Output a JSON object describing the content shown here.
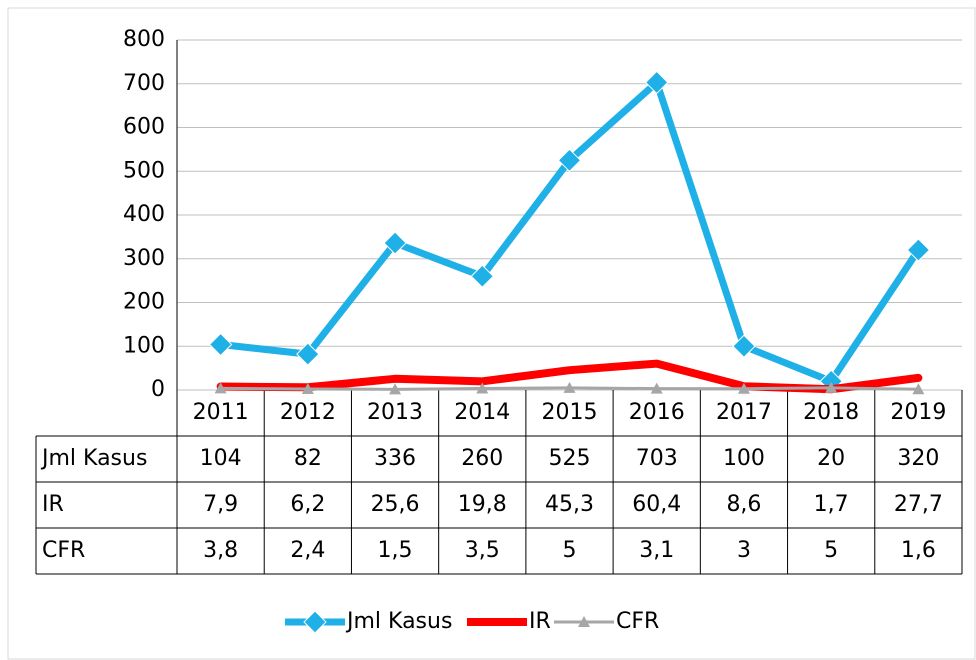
{
  "chart_data": {
    "type": "line",
    "categories": [
      "2011",
      "2012",
      "2013",
      "2014",
      "2015",
      "2016",
      "2017",
      "2018",
      "2019"
    ],
    "series": [
      {
        "name": "Jml Kasus",
        "color": "#1fb0e8",
        "marker": "diamond",
        "values": [
          104,
          82,
          336,
          260,
          525,
          703,
          100,
          20,
          320
        ]
      },
      {
        "name": "IR",
        "color": "#ff0000",
        "marker": "none",
        "values": [
          7.9,
          6.2,
          25.6,
          19.8,
          45.3,
          60.4,
          8.6,
          1.7,
          27.7
        ],
        "value_labels": [
          "7,9",
          "6,2",
          "25,6",
          "19,8",
          "45,3",
          "60,4",
          "8,6",
          "1,7",
          "27,7"
        ]
      },
      {
        "name": "CFR",
        "color": "#a6a6a6",
        "marker": "triangle",
        "values": [
          3.8,
          2.4,
          1.5,
          3.5,
          5,
          3.1,
          3,
          5,
          1.6
        ],
        "value_labels": [
          "3,8",
          "2,4",
          "1,5",
          "3,5",
          "5",
          "3,1",
          "3",
          "5",
          "1,6"
        ]
      }
    ],
    "ylim": [
      0,
      800
    ],
    "yticks": [
      0,
      100,
      200,
      300,
      400,
      500,
      600,
      700,
      800
    ],
    "grid": true,
    "legend": "bottom",
    "data_table": true
  }
}
